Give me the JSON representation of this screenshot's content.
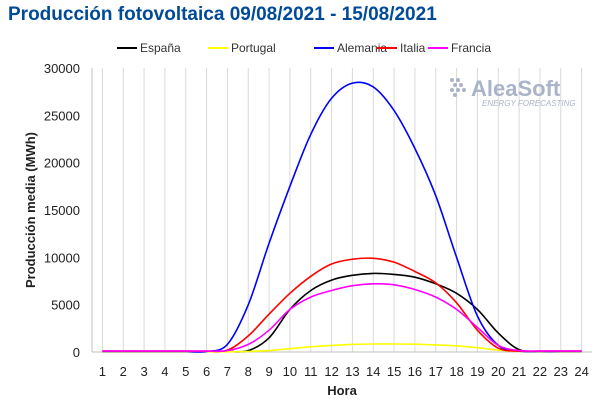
{
  "chart_data": {
    "type": "line",
    "title": "Producción fotovoltaica 09/08/2021 - 15/08/2021",
    "xlabel": "Hora",
    "ylabel": "Producción media (MWh)",
    "x": [
      1,
      2,
      3,
      4,
      5,
      6,
      7,
      8,
      9,
      10,
      11,
      12,
      13,
      14,
      15,
      16,
      17,
      18,
      19,
      20,
      21,
      22,
      23,
      24
    ],
    "xlim": [
      0.5,
      24.5
    ],
    "ylim": [
      0,
      30000
    ],
    "yticks": [
      0,
      5000,
      10000,
      15000,
      20000,
      25000,
      30000
    ],
    "grid": "vertical",
    "legend_position": "top",
    "series": [
      {
        "name": "España",
        "color": "#000000",
        "values": [
          50,
          50,
          50,
          50,
          50,
          50,
          50,
          150,
          1500,
          4500,
          6500,
          7600,
          8100,
          8300,
          8200,
          7900,
          7200,
          6200,
          4500,
          2000,
          250,
          50,
          50,
          50
        ]
      },
      {
        "name": "Portugal",
        "color": "#ffff00",
        "values": [
          20,
          20,
          20,
          20,
          20,
          20,
          20,
          50,
          150,
          350,
          550,
          700,
          800,
          850,
          850,
          820,
          750,
          650,
          450,
          200,
          50,
          20,
          20,
          20
        ]
      },
      {
        "name": "Alemania",
        "color": "#0000ff",
        "values": [
          50,
          50,
          50,
          50,
          50,
          50,
          800,
          5000,
          11500,
          17500,
          23000,
          26800,
          28400,
          28000,
          25500,
          21500,
          16500,
          10000,
          3800,
          700,
          100,
          50,
          50,
          50
        ]
      },
      {
        "name": "Italia",
        "color": "#ff0000",
        "values": [
          100,
          100,
          100,
          100,
          100,
          100,
          200,
          1700,
          4000,
          6200,
          8000,
          9300,
          9800,
          9900,
          9500,
          8500,
          7300,
          5200,
          2300,
          400,
          100,
          100,
          100,
          100
        ]
      },
      {
        "name": "Francia",
        "color": "#ff00ff",
        "values": [
          100,
          100,
          100,
          100,
          100,
          100,
          150,
          800,
          2300,
          4500,
          5800,
          6500,
          7000,
          7200,
          7100,
          6600,
          5800,
          4500,
          2600,
          700,
          150,
          100,
          100,
          100
        ]
      }
    ]
  },
  "logo": {
    "name": "AleaSoft",
    "tagline": "ENERGY FORECASTING"
  }
}
